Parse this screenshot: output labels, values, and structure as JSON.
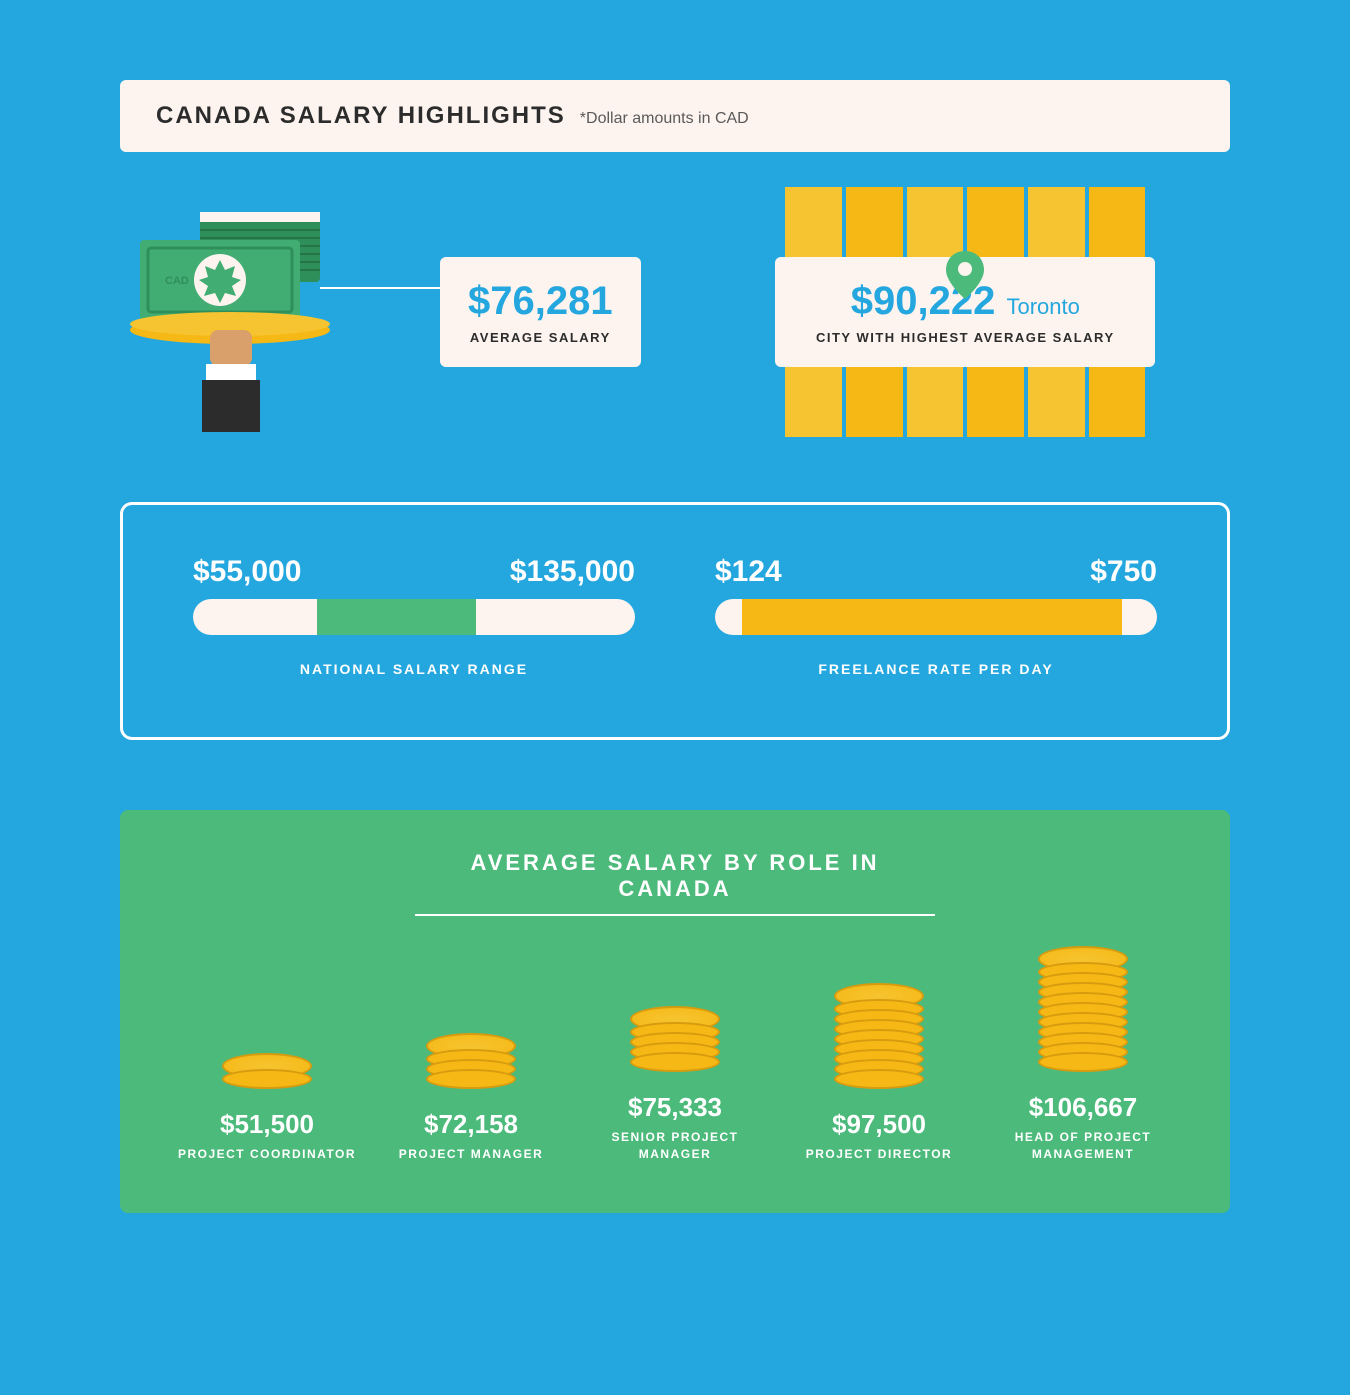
{
  "colors": {
    "page_bg": "#24a7df",
    "card_bg": "#fdf4f0",
    "accent_green": "#4cba7b",
    "accent_yellow": "#f6b814",
    "accent_yellow_light": "#f6c430",
    "text_dark": "#2c2c2c",
    "text_white": "#ffffff",
    "stat_blue": "#24a7df"
  },
  "header": {
    "title": "CANADA SALARY HIGHLIGHTS",
    "subtitle": "*Dollar amounts in CAD"
  },
  "avg_salary": {
    "value": "$76,281",
    "label": "AVERAGE SALARY"
  },
  "highest_city": {
    "value": "$90,222",
    "city": "Toronto",
    "label": "CITY WITH HIGHEST AVERAGE SALARY"
  },
  "national_range": {
    "low": "$55,000",
    "high": "$135,000",
    "label": "NATIONAL SALARY RANGE",
    "fill_color": "#4cba7b",
    "fill_left_pct": 28,
    "fill_width_pct": 36
  },
  "freelance_range": {
    "low": "$124",
    "high": "$750",
    "label": "FREELANCE RATE PER DAY",
    "fill_color": "#f6b814",
    "fill_left_pct": 6,
    "fill_width_pct": 86
  },
  "roles_section": {
    "title": "AVERAGE SALARY BY ROLE IN CANADA",
    "roles": [
      {
        "salary": "$51,500",
        "name": "PROJECT COORDINATOR",
        "coins": 2
      },
      {
        "salary": "$72,158",
        "name": "PROJECT MANAGER",
        "coins": 4
      },
      {
        "salary": "$75,333",
        "name": "SENIOR PROJECT MANAGER",
        "coins": 5
      },
      {
        "salary": "$97,500",
        "name": "PROJECT DIRECTOR",
        "coins": 9
      },
      {
        "salary": "$106,667",
        "name": "HEAD OF PROJECT MANAGEMENT",
        "coins": 11
      }
    ]
  }
}
